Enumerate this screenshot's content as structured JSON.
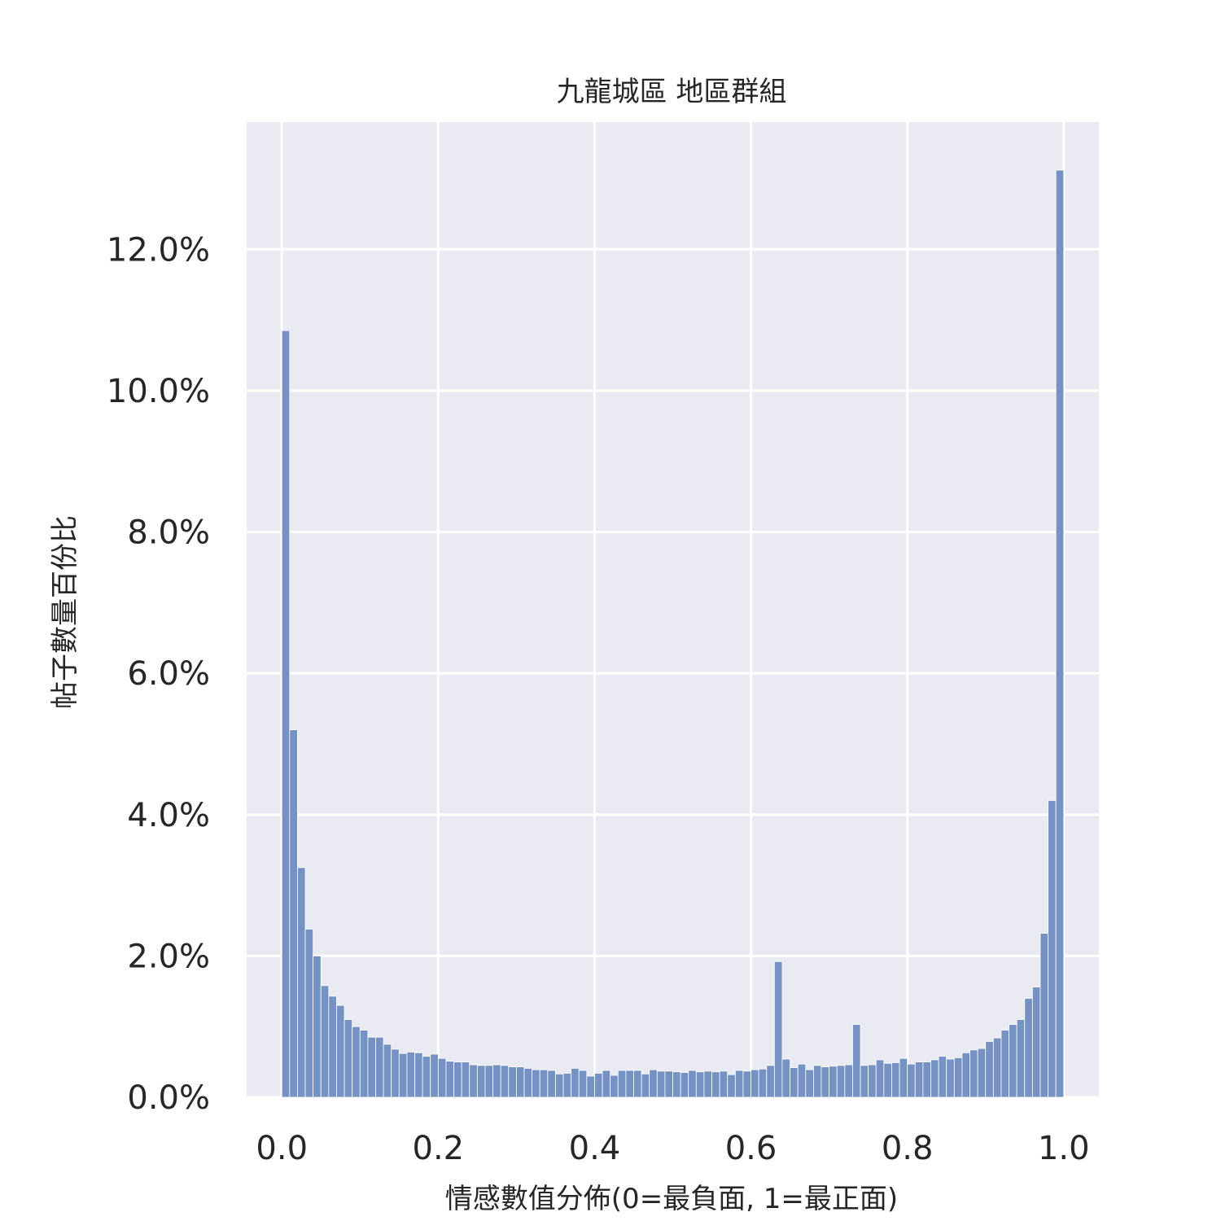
{
  "chart_data": {
    "type": "bar",
    "title": "九龍城區 地區群組",
    "xlabel": "情感數值分佈(0=最負面, 1=最正面)",
    "ylabel": "帖子數量百份比",
    "xlim": [
      -0.045,
      1.045
    ],
    "ylim": [
      0,
      13.8
    ],
    "x_ticks": [
      0.0,
      0.2,
      0.4,
      0.6,
      0.8,
      1.0
    ],
    "x_tick_labels": [
      "0.0",
      "0.2",
      "0.4",
      "0.6",
      "0.8",
      "1.0"
    ],
    "y_ticks": [
      0,
      2,
      4,
      6,
      8,
      10,
      12
    ],
    "y_tick_labels": [
      "0.0%",
      "2.0%",
      "4.0%",
      "6.0%",
      "8.0%",
      "10.0%",
      "12.0%"
    ],
    "grid": true,
    "bar_color": "#7592c3",
    "background_color": "#eaeaf2",
    "bin_width": 0.01,
    "bin_start": 0.0,
    "values": [
      10.85,
      5.2,
      3.25,
      2.38,
      2.0,
      1.58,
      1.43,
      1.3,
      1.1,
      1.0,
      0.95,
      0.85,
      0.85,
      0.75,
      0.68,
      0.62,
      0.64,
      0.63,
      0.58,
      0.61,
      0.55,
      0.51,
      0.5,
      0.5,
      0.46,
      0.45,
      0.45,
      0.46,
      0.45,
      0.43,
      0.43,
      0.41,
      0.39,
      0.39,
      0.38,
      0.33,
      0.34,
      0.41,
      0.38,
      0.3,
      0.34,
      0.38,
      0.31,
      0.38,
      0.38,
      0.38,
      0.33,
      0.39,
      0.37,
      0.37,
      0.36,
      0.35,
      0.38,
      0.36,
      0.37,
      0.36,
      0.37,
      0.32,
      0.38,
      0.37,
      0.39,
      0.4,
      0.45,
      1.92,
      0.54,
      0.42,
      0.47,
      0.39,
      0.45,
      0.43,
      0.44,
      0.45,
      0.46,
      1.03,
      0.45,
      0.46,
      0.53,
      0.48,
      0.49,
      0.55,
      0.47,
      0.5,
      0.5,
      0.53,
      0.58,
      0.54,
      0.56,
      0.63,
      0.67,
      0.69,
      0.79,
      0.84,
      0.95,
      1.03,
      1.1,
      1.4,
      1.56,
      2.32,
      4.2,
      13.12
    ]
  }
}
